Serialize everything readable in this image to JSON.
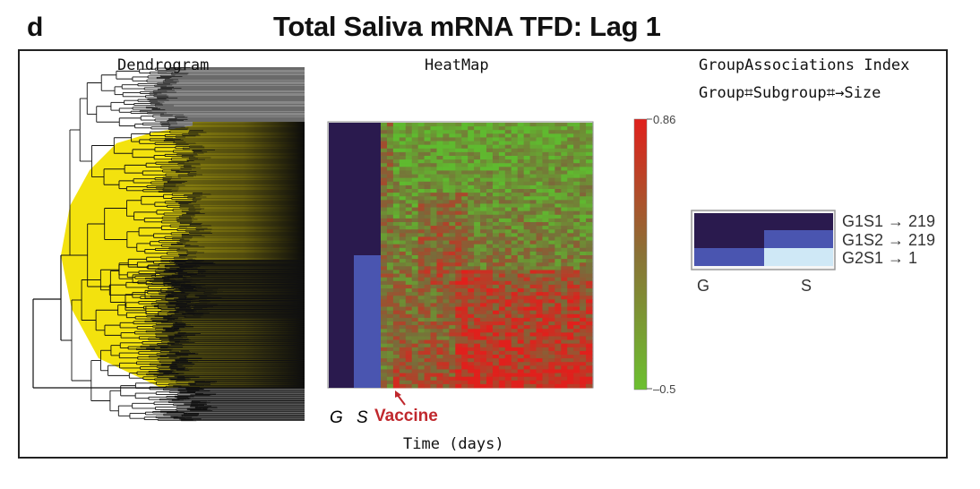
{
  "panel_letter": "d",
  "title": "Total Saliva mRNA TFD: Lag 1",
  "labels": {
    "dendrogram": "Dendrogram",
    "heatmap": "HeatMap",
    "group_index_line1": "GroupAssociations Index",
    "group_index_line2": "Group⌗Subgroup⌗→Size",
    "time_axis": "Time (days)",
    "g": "G",
    "s": "S",
    "vaccine": "Vaccine"
  },
  "colors": {
    "high": "#e0201c",
    "mid": "#7a6a3a",
    "low": "#5fba2f",
    "group_dark": "#2a1a4e",
    "group_mid": "#4a55b0",
    "group_light": "#cfe8f6",
    "dendro_fill": "#f3e20e"
  },
  "chart_data": {
    "type": "heatmap",
    "title": "Total Saliva mRNA TFD: Lag 1",
    "xlabel": "Time (days)",
    "annotation": "Vaccine",
    "colorbar": {
      "min": -0.5,
      "max": 0.86,
      "min_label": "–0.5",
      "max_label": "0.86"
    },
    "group_index": {
      "columns": [
        "G",
        "S"
      ],
      "rows": [
        {
          "label": "G1S1 → 219",
          "group": 1,
          "subgroup": 1,
          "size": 219
        },
        {
          "label": "G1S2 → 219",
          "group": 1,
          "subgroup": 2,
          "size": 219
        },
        {
          "label": "G2S1 → 1",
          "group": 2,
          "subgroup": 1,
          "size": 1
        }
      ]
    }
  }
}
